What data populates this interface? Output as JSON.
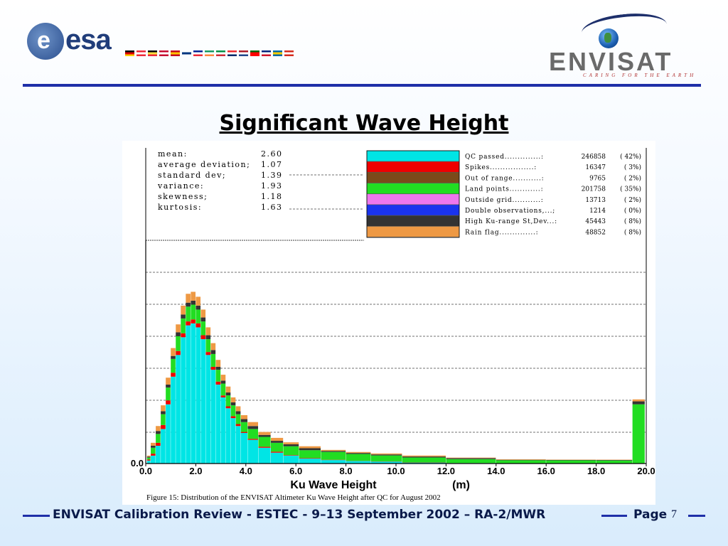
{
  "header": {
    "esa_logo_text": "esa",
    "esa_logo_letter": "e",
    "envisat_logo_text": "ENVISAT",
    "envisat_tagline": "CARING FOR THE EARTH",
    "flag_colors": [
      [
        "#000000",
        "#dd0000",
        "#ffce00"
      ],
      [
        "#ed2939",
        "#ffffff",
        "#ed2939"
      ],
      [
        "#000000",
        "#fae042",
        "#ed2939"
      ],
      [
        "#c60c30",
        "#ffffff",
        "#c60c30"
      ],
      [
        "#c60b1e",
        "#ffc400",
        "#c60b1e"
      ],
      [
        "#ffffff",
        "#003580",
        "#ffffff"
      ],
      [
        "#002395",
        "#ffffff",
        "#ed2939"
      ],
      [
        "#169b62",
        "#ffffff",
        "#ff883e"
      ],
      [
        "#009246",
        "#ffffff",
        "#ce2b37"
      ],
      [
        "#ef2b2d",
        "#ffffff",
        "#002868"
      ],
      [
        "#ae1c28",
        "#ffffff",
        "#21468b"
      ],
      [
        "#006600",
        "#ff0000",
        "#ff0000"
      ],
      [
        "#00247d",
        "#ffffff",
        "#cf142b"
      ],
      [
        "#006aa7",
        "#fecc00",
        "#006aa7"
      ],
      [
        "#d52b1e",
        "#ffffff",
        "#d52b1e"
      ]
    ]
  },
  "slide": {
    "title": "Significant Wave Height"
  },
  "chart_data": {
    "type": "bar",
    "stacked": true,
    "xlabel": "Ku Wave Height",
    "xunit": "(m)",
    "ylabel": "",
    "xlim": [
      0,
      20
    ],
    "xticks": [
      "0.0",
      "2.0",
      "4.0",
      "6.0",
      "8.0",
      "10.0",
      "12.0",
      "14.0",
      "16.0",
      "18.0",
      "20.0"
    ],
    "yticks": [
      "0.0"
    ],
    "grid": "dashed horizontal",
    "legend_position": "top-right",
    "caption": "Figure 15: Distribution of the ENVISAT Altimeter Ku Wave Height after QC for August 2002",
    "stats": [
      {
        "label": "mean:",
        "value": "2.60"
      },
      {
        "label": "average deviation;",
        "value": "1.07"
      },
      {
        "label": "standard dev;",
        "value": "1.39"
      },
      {
        "label": "variance:",
        "value": "1.93"
      },
      {
        "label": "skewness;",
        "value": "1.18"
      },
      {
        "label": "kurtosis:",
        "value": "1.63"
      }
    ],
    "legend": [
      {
        "name": "QC passed..............:",
        "count": "246858",
        "pct": "( 42%)",
        "color": "#00e5e5"
      },
      {
        "name": "Spikes.................:",
        "count": "16347",
        "pct": "( 3%)",
        "color": "#ee0000"
      },
      {
        "name": "Out of range...........:",
        "count": "9765",
        "pct": "( 2%)",
        "color": "#7a4a1a"
      },
      {
        "name": "Land points............:",
        "count": "201758",
        "pct": "( 35%)",
        "color": "#22dd22"
      },
      {
        "name": "Outside grid...........:",
        "count": "13713",
        "pct": "( 2%)",
        "color": "#ee77ee"
      },
      {
        "name": "Double observations,...;",
        "count": "1214",
        "pct": "( 0%)",
        "color": "#1a33ee"
      },
      {
        "name": "High Ku-range St,Dev...:",
        "count": "45443",
        "pct": "( 8%)",
        "color": "#333333"
      },
      {
        "name": "Rain flag..............:",
        "count": "48852",
        "pct": "( 8%)",
        "color": "#ee9944"
      }
    ],
    "x": [
      0.1,
      0.3,
      0.5,
      0.7,
      0.9,
      1.1,
      1.3,
      1.5,
      1.7,
      1.9,
      2.1,
      2.3,
      2.5,
      2.7,
      2.9,
      3.1,
      3.3,
      3.5,
      3.7,
      3.9,
      4.25,
      4.75,
      5.25,
      5.75,
      6.5,
      7.5,
      8.5,
      9.5,
      11,
      13,
      15,
      17,
      19,
      19.9
    ],
    "series": [
      {
        "name": "QC passed",
        "color": "#00e5e5",
        "values": [
          3,
          8,
          18,
          35,
          60,
          88,
          110,
          128,
          140,
          142,
          138,
          126,
          110,
          95,
          80,
          67,
          56,
          46,
          38,
          31,
          24,
          16,
          11,
          8,
          5,
          3.5,
          2.5,
          2,
          1,
          0.5,
          0.3,
          0.2,
          0.1,
          0
        ]
      },
      {
        "name": "Spikes",
        "color": "#ee0000",
        "values": [
          1,
          2,
          3,
          4,
          4,
          4,
          4,
          4,
          4,
          4,
          4,
          4,
          3,
          3,
          3,
          2,
          2,
          2,
          2,
          1,
          1,
          1,
          1,
          0.5,
          0.5,
          0.3,
          0.2,
          0.2,
          0.1,
          0,
          0,
          0,
          0,
          0
        ]
      },
      {
        "name": "Land points",
        "color": "#22dd22",
        "values": [
          2,
          6,
          9,
          11,
          13,
          14,
          15,
          15,
          15,
          15,
          14,
          14,
          13,
          13,
          12,
          12,
          11,
          11,
          10,
          10,
          10,
          10,
          9,
          9,
          8,
          8,
          7,
          6,
          5,
          4,
          3,
          3,
          3,
          60
        ]
      },
      {
        "name": "High Ku-range St,Dev",
        "color": "#333333",
        "values": [
          1,
          2,
          3,
          3,
          3,
          3,
          4,
          4,
          4,
          4,
          4,
          4,
          4,
          4,
          3,
          3,
          3,
          3,
          3,
          3,
          3,
          2,
          2,
          2,
          2,
          1,
          1,
          1,
          1,
          1,
          0.5,
          0.5,
          0.5,
          3
        ]
      },
      {
        "name": "Rain flag",
        "color": "#ee9944",
        "values": [
          1,
          3,
          5,
          6,
          7,
          8,
          8,
          9,
          9,
          9,
          9,
          8,
          8,
          7,
          7,
          6,
          6,
          5,
          5,
          4,
          4,
          3,
          3,
          2,
          2,
          1,
          1,
          1,
          1,
          0.5,
          0.5,
          0.3,
          0.3,
          2
        ]
      }
    ]
  },
  "footer": {
    "text": "ENVISAT Calibration Review - ESTEC - 9–13 September 2002 – RA-2/MWR",
    "page_label": "Page",
    "page_number": "7"
  }
}
